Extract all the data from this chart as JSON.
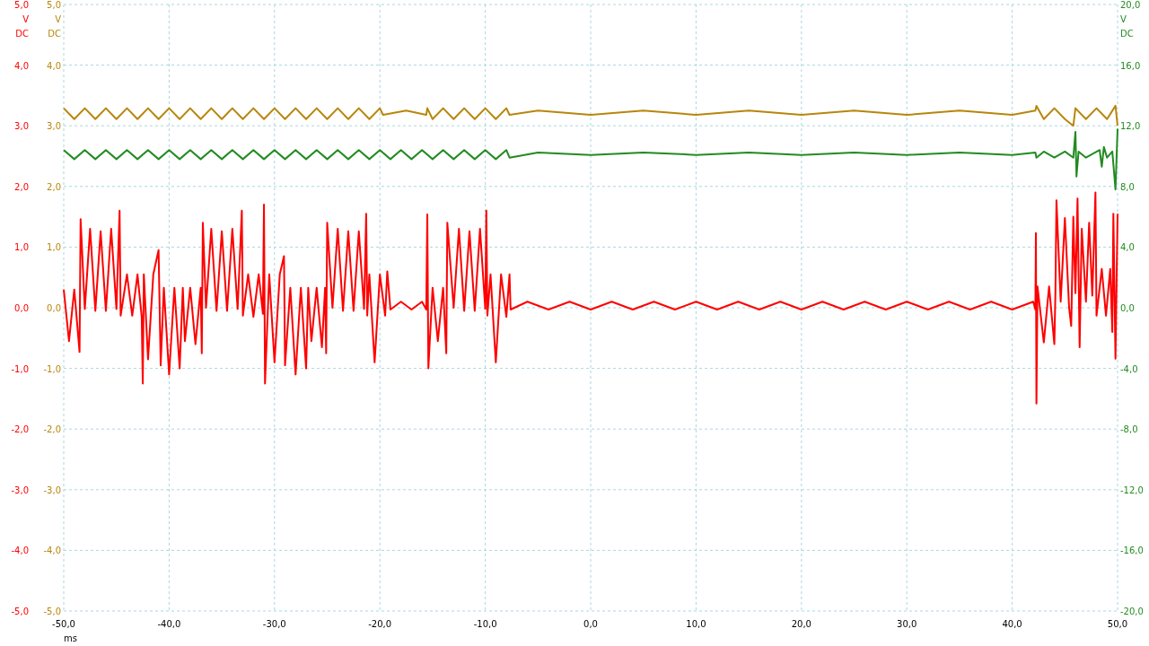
{
  "chart_data": {
    "type": "line",
    "xlabel": "ms",
    "ylabel": "V DC",
    "y2label": "V DC",
    "y3label": "V DC",
    "grid": true,
    "line_style": "solid",
    "xlim": [
      -50,
      50
    ],
    "xticks": [
      {
        "value": -50,
        "label": "-50,0"
      },
      {
        "value": -40,
        "label": "-40,0"
      },
      {
        "value": -30,
        "label": "-30,0"
      },
      {
        "value": -20,
        "label": "-20,0"
      },
      {
        "value": -10,
        "label": "-10,0"
      },
      {
        "value": 0,
        "label": "0,0"
      },
      {
        "value": 10,
        "label": "10,0"
      },
      {
        "value": 20,
        "label": "20,0"
      },
      {
        "value": 30,
        "label": "30,0"
      },
      {
        "value": 40,
        "label": "40,0"
      },
      {
        "value": 50,
        "label": "50,0"
      }
    ],
    "ylim": [
      -5,
      5
    ],
    "yticks": [
      {
        "value": -5,
        "label": "-5,0"
      },
      {
        "value": -4,
        "label": "-4,0"
      },
      {
        "value": -3,
        "label": "-3,0"
      },
      {
        "value": -2,
        "label": "-2,0"
      },
      {
        "value": -1,
        "label": "-1,0"
      },
      {
        "value": 0,
        "label": "0,0"
      },
      {
        "value": 1,
        "label": "1,0"
      },
      {
        "value": 2,
        "label": "2,0"
      },
      {
        "value": 3,
        "label": "3,0"
      },
      {
        "value": 4,
        "label": "4,0"
      },
      {
        "value": 5,
        "label": "5,0"
      }
    ],
    "y2lim": [
      -5,
      5
    ],
    "y2ticks": [
      {
        "value": -5,
        "label": "-5,0"
      },
      {
        "value": -4,
        "label": "-4,0"
      },
      {
        "value": -3,
        "label": "-3,0"
      },
      {
        "value": -2,
        "label": "-2,0"
      },
      {
        "value": -1,
        "label": "-1,0"
      },
      {
        "value": 0,
        "label": "0,0"
      },
      {
        "value": 1,
        "label": "1,0"
      },
      {
        "value": 2,
        "label": "2,0"
      },
      {
        "value": 3,
        "label": "3,0"
      },
      {
        "value": 4,
        "label": "4,0"
      },
      {
        "value": 5,
        "label": "5,0"
      }
    ],
    "y3lim": [
      -20,
      20
    ],
    "y3ticks": [
      {
        "value": -20,
        "label": "-20,0"
      },
      {
        "value": -16,
        "label": "-16,0"
      },
      {
        "value": -12,
        "label": "-12,0"
      },
      {
        "value": -8,
        "label": "-8,0"
      },
      {
        "value": -4,
        "label": "-4,0"
      },
      {
        "value": 0,
        "label": "0,0"
      },
      {
        "value": 4,
        "label": "4,0"
      },
      {
        "value": 8,
        "label": "8,0"
      },
      {
        "value": 12,
        "label": "12,0"
      },
      {
        "value": 16,
        "label": "16,0"
      },
      {
        "value": 20,
        "label": "20,0"
      }
    ],
    "series": [
      {
        "color": "#ff0000",
        "x": [
          -50,
          -49.5,
          -49,
          -48.5,
          -48.4,
          -48,
          -47.5,
          -47,
          -46.5,
          -46,
          -45.5,
          -45,
          -44.7,
          -44.6,
          -44,
          -43.5,
          -43,
          -42.6,
          -42.5,
          -42.4,
          -42,
          -41.5,
          -41,
          -40.8,
          -40.5,
          -40,
          -39.5,
          -39,
          -38.7,
          -38.5,
          -38,
          -37.5,
          -37,
          -36.9,
          -36.8,
          -36.5,
          -36,
          -35.5,
          -35,
          -34.5,
          -34,
          -33.5,
          -33.1,
          -33,
          -32.5,
          -32,
          -31.5,
          -31.1,
          -31,
          -30.9,
          -30.5,
          -30,
          -29.5,
          -29.1,
          -29,
          -28.5,
          -28,
          -27.5,
          -27,
          -26.8,
          -26.5,
          -26,
          -25.5,
          -25.2,
          -25.1,
          -25,
          -24.5,
          -24,
          -23.5,
          -23,
          -22.5,
          -22,
          -21.5,
          -21.3,
          -21.2,
          -21,
          -20.5,
          -20,
          -19.5,
          -19.3,
          -19,
          -18,
          -17,
          -16,
          -15.6,
          -15.5,
          -15.4,
          -15,
          -14.5,
          -14,
          -13.7,
          -13.6,
          -13,
          -12.5,
          -12,
          -11.5,
          -11,
          -10.5,
          -10,
          -9.9,
          -9.8,
          -9.5,
          -9,
          -8.5,
          -8,
          -7.7,
          -7.6,
          -6,
          -4,
          -2,
          0,
          2,
          4,
          6,
          8,
          10,
          12,
          14,
          16,
          18,
          20,
          22,
          24,
          26,
          28,
          30,
          32,
          34,
          36,
          38,
          40,
          42,
          42.2,
          42.25,
          42.3,
          42.4,
          43,
          43.5,
          44,
          44.1,
          44.2,
          44.6,
          45,
          45.4,
          45.6,
          45.8,
          46,
          46.2,
          46.4,
          46.6,
          47,
          47.3,
          47.6,
          47.9,
          48,
          48.5,
          48.9,
          49.3,
          49.5,
          49.6,
          49.8,
          50
        ],
        "values": [
          0.3,
          -0.55,
          0.3,
          -0.73,
          1.46,
          -0.02,
          1.3,
          -0.05,
          1.26,
          -0.05,
          1.3,
          -0.02,
          1.6,
          -0.13,
          0.55,
          -0.13,
          0.55,
          -0.15,
          -1.25,
          0.55,
          -0.85,
          0.55,
          0.95,
          -0.95,
          0.33,
          -1.1,
          0.33,
          -1.0,
          0.33,
          -0.55,
          0.33,
          -0.6,
          0.33,
          -0.75,
          1.4,
          0.0,
          1.3,
          -0.05,
          1.26,
          -0.05,
          1.3,
          -0.02,
          1.6,
          -0.13,
          0.55,
          -0.15,
          0.55,
          -0.1,
          1.7,
          -1.25,
          0.55,
          -0.9,
          0.55,
          0.85,
          -0.95,
          0.33,
          -1.1,
          0.33,
          -1.0,
          0.33,
          -0.55,
          0.33,
          -0.65,
          0.33,
          -0.75,
          1.4,
          0.0,
          1.3,
          -0.05,
          1.26,
          -0.05,
          1.26,
          -0.02,
          1.55,
          -0.13,
          0.55,
          -0.9,
          0.55,
          -0.13,
          0.6,
          -0.03,
          0.1,
          -0.03,
          0.1,
          -0.03,
          1.54,
          -1.0,
          0.33,
          -0.55,
          0.33,
          -0.75,
          1.4,
          0.0,
          1.3,
          -0.05,
          1.26,
          -0.05,
          1.3,
          -0.02,
          1.6,
          -0.13,
          0.55,
          -0.9,
          0.55,
          -0.15,
          0.55,
          -0.03,
          0.1,
          -0.03,
          0.1,
          -0.03,
          0.1,
          -0.03,
          0.1,
          -0.03,
          0.1,
          -0.03,
          0.1,
          -0.03,
          0.1,
          -0.03,
          0.1,
          -0.03,
          0.1,
          -0.03,
          0.1,
          -0.03,
          0.1,
          -0.03,
          0.1,
          -0.03,
          0.1,
          -0.03,
          1.23,
          -1.58,
          0.35,
          -0.57,
          0.35,
          -0.6,
          0.24,
          1.77,
          0.1,
          1.48,
          0.0,
          -0.3,
          1.5,
          0.24,
          1.8,
          -0.65,
          1.3,
          0.1,
          1.4,
          0.2,
          1.9,
          -0.13,
          0.64,
          -0.13,
          0.64,
          -0.4,
          1.55,
          -0.84,
          1.55
        ]
      },
      {
        "color": "#b8860b",
        "axis": "y2",
        "x": [
          -50,
          -49,
          -48,
          -47,
          -46,
          -45,
          -44,
          -43,
          -42,
          -41,
          -40,
          -39,
          -38,
          -37,
          -36,
          -35,
          -34,
          -33,
          -32,
          -31,
          -30,
          -29,
          -28,
          -27,
          -26,
          -25,
          -24,
          -23,
          -22,
          -21,
          -20,
          -19.7,
          -17.5,
          -15.6,
          -15.5,
          -15,
          -14,
          -13,
          -12,
          -11,
          -10,
          -9,
          -8,
          -7.7,
          -5,
          0,
          5,
          10,
          15,
          20,
          25,
          30,
          35,
          40,
          42.2,
          42.3,
          43,
          44,
          45,
          45.8,
          46,
          47,
          48,
          49,
          49.8,
          50
        ],
        "values": [
          3.29,
          3.11,
          3.29,
          3.11,
          3.29,
          3.11,
          3.29,
          3.11,
          3.29,
          3.11,
          3.29,
          3.11,
          3.29,
          3.11,
          3.29,
          3.11,
          3.29,
          3.11,
          3.29,
          3.11,
          3.29,
          3.11,
          3.29,
          3.11,
          3.29,
          3.11,
          3.29,
          3.11,
          3.29,
          3.11,
          3.29,
          3.18,
          3.25,
          3.18,
          3.29,
          3.11,
          3.29,
          3.11,
          3.29,
          3.11,
          3.29,
          3.11,
          3.29,
          3.18,
          3.25,
          3.18,
          3.25,
          3.18,
          3.25,
          3.18,
          3.25,
          3.18,
          3.25,
          3.18,
          3.25,
          3.33,
          3.11,
          3.29,
          3.11,
          3.0,
          3.29,
          3.11,
          3.29,
          3.11,
          3.33,
          3.0
        ]
      },
      {
        "color": "#228b22",
        "axis": "y3",
        "x": [
          -50,
          -49,
          -48,
          -47,
          -46,
          -45,
          -44,
          -43,
          -42,
          -41,
          -40,
          -39,
          -38,
          -37,
          -36,
          -35,
          -34,
          -33,
          -32,
          -31,
          -30,
          -29,
          -28,
          -27,
          -26,
          -25,
          -24,
          -23,
          -22,
          -21,
          -20,
          -19,
          -18,
          -17,
          -16,
          -15,
          -14,
          -13,
          -12,
          -11,
          -10,
          -9,
          -8,
          -7.7,
          -5,
          0,
          5,
          10,
          15,
          20,
          25,
          30,
          35,
          40,
          42.2,
          42.3,
          43,
          44,
          45,
          45.8,
          46,
          46.1,
          46.3,
          47,
          48.3,
          48.5,
          48.7,
          49,
          49.5,
          49.8,
          50
        ],
        "values": [
          10.4,
          9.8,
          10.4,
          9.8,
          10.4,
          9.8,
          10.4,
          9.8,
          10.4,
          9.8,
          10.4,
          9.8,
          10.4,
          9.8,
          10.4,
          9.8,
          10.4,
          9.8,
          10.4,
          9.8,
          10.4,
          9.8,
          10.4,
          9.8,
          10.4,
          9.8,
          10.4,
          9.8,
          10.4,
          9.8,
          10.4,
          9.8,
          10.4,
          9.8,
          10.4,
          9.8,
          10.4,
          9.8,
          10.4,
          9.8,
          10.4,
          9.8,
          10.4,
          9.9,
          10.24,
          10.08,
          10.24,
          10.08,
          10.24,
          10.08,
          10.24,
          10.08,
          10.24,
          10.08,
          10.24,
          9.9,
          10.3,
          9.9,
          10.3,
          9.9,
          11.6,
          8.66,
          10.3,
          9.9,
          10.4,
          9.3,
          10.6,
          9.9,
          10.3,
          7.8,
          11.8
        ]
      }
    ]
  }
}
